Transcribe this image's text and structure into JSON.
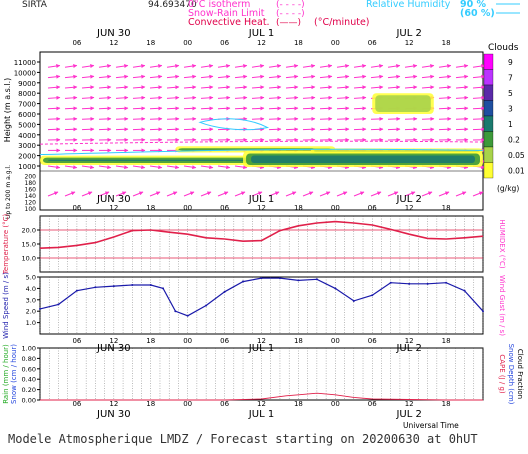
{
  "header": {
    "site": "SIRTA",
    "coords": "94.693470",
    "legend_left": [
      {
        "label": "0°C isotherm",
        "sample": "(- - - -)",
        "color": "#ff33cc"
      },
      {
        "label": "Snow-Rain Limit",
        "sample": "(- - - -)",
        "color": "#ff33cc"
      },
      {
        "label": "Convective Heat.",
        "sample": "(——)",
        "color": "#e0004a",
        "unit": "(°C/minute)"
      }
    ],
    "legend_right": [
      {
        "label": "Relative Humidity",
        "value": "90 %",
        "color": "#33ccff"
      },
      {
        "label": "",
        "value": "(60 %)",
        "color": "#33ccff"
      }
    ]
  },
  "days": [
    "JUN 30",
    "JUL  1",
    "JUL  2"
  ],
  "hour_ticks": [
    "06",
    "12",
    "18",
    "00",
    "06",
    "12",
    "18",
    "00",
    "06",
    "12",
    "18"
  ],
  "xlabel": "Universal Time",
  "footer_text": "Modele Atmospherique LMDZ / Forecast starting on 20200630 at 0hUT",
  "clouds_legend": {
    "title": "Clouds",
    "levels": [
      "9",
      "7",
      "5",
      "3",
      "1",
      "0.2",
      "0.05",
      "0.01"
    ],
    "colors": [
      "#ff00ff",
      "#bb33ff",
      "#5a2aa8",
      "#1f4fa0",
      "#1b7a6e",
      "#3d9a3a",
      "#a8d34a",
      "#ffff33"
    ],
    "unit": "(g/kg)"
  },
  "chart_data": [
    {
      "type": "heatmap",
      "name_axis": "Height (m a.s.l.)",
      "ylabel": "Height (m a.s.l.)",
      "ylabel2": "Up to 200 m a.g.l.",
      "yticks_upper": [
        11000,
        10000,
        9000,
        8000,
        7000,
        6000,
        5000,
        4000,
        3000,
        2000,
        1000
      ],
      "yticks_lower": [
        200,
        180,
        160,
        140,
        120,
        100
      ],
      "cloud_layers": [
        {
          "t_start": 0,
          "t_end": 60,
          "h_low": 1100,
          "h_high": 2000,
          "max_gkg": 1
        },
        {
          "t_start": 22,
          "t_end": 48,
          "h_low": 2300,
          "h_high": 2900,
          "max_gkg": 1
        },
        {
          "t_start": 33,
          "t_end": 72,
          "h_low": 900,
          "h_high": 2400,
          "max_gkg": 1
        },
        {
          "t_start": 54,
          "t_end": 64,
          "h_low": 6000,
          "h_high": 8000,
          "max_gkg": 0.2
        },
        {
          "t_start": 44,
          "t_end": 72,
          "h_low": 2200,
          "h_high": 2700,
          "max_gkg": 0.2
        }
      ]
    },
    {
      "type": "line",
      "ylabel": "Temperature (°C)",
      "ylabel_right": "HUMIDEX (°C)",
      "yticks": [
        "20.0",
        "15.0",
        "10.0"
      ],
      "ylim": [
        5,
        25
      ],
      "x_hours": [
        0,
        3,
        6,
        9,
        12,
        15,
        18,
        21,
        24,
        27,
        30,
        33,
        36,
        39,
        42,
        45,
        48,
        51,
        54,
        57,
        60,
        63,
        66,
        69,
        72
      ],
      "series": [
        {
          "values": [
            13.5,
            13.8,
            14.5,
            15.5,
            17.5,
            19.8,
            20.0,
            19.2,
            18.5,
            17.2,
            16.8,
            16.0,
            16.2,
            19.8,
            21.5,
            22.5,
            23.0,
            22.5,
            21.8,
            20.2,
            18.5,
            17.0,
            16.8,
            17.2,
            17.8
          ]
        }
      ],
      "hlines": [
        20,
        10
      ]
    },
    {
      "type": "line",
      "ylabel": "Wind Speed (m / s)",
      "ylabel_right": "Wind Gust (m / s)",
      "yticks": [
        "5.0",
        "4.0",
        "3.0",
        "2.0",
        "1.0"
      ],
      "ylim": [
        0,
        5
      ],
      "x_hours": [
        0,
        3,
        6,
        9,
        12,
        15,
        18,
        20,
        22,
        24,
        27,
        30,
        33,
        36,
        39,
        42,
        45,
        48,
        51,
        54,
        57,
        60,
        63,
        66,
        69,
        72
      ],
      "series": [
        {
          "values": [
            2.2,
            2.6,
            3.8,
            4.1,
            4.2,
            4.3,
            4.3,
            4.0,
            2.0,
            1.6,
            2.5,
            3.7,
            4.6,
            4.9,
            4.9,
            4.7,
            4.8,
            4.0,
            2.9,
            3.4,
            4.5,
            4.4,
            4.4,
            4.5,
            3.8,
            2.0
          ]
        }
      ]
    },
    {
      "type": "line",
      "ylabel": "Rain (mm / hour)",
      "ylabel2": "Snow (cm / hour)",
      "ylabel_right": "CAPE (J / g)",
      "ylabel_right2": "Snow Depth (cm)",
      "ylabel_right3": "Cloud Fraction",
      "yticks": [
        "1.00",
        "0.80",
        "0.60",
        "0.40",
        "0.20",
        "0.00"
      ],
      "ylim": [
        0,
        1
      ],
      "x_hours": [
        0,
        12,
        24,
        30,
        36,
        40,
        42,
        45,
        48,
        51,
        54,
        60,
        66,
        72
      ],
      "series": [
        {
          "values": [
            0.0,
            0.0,
            0.0,
            0.0,
            0.02,
            0.08,
            0.1,
            0.13,
            0.1,
            0.05,
            0.02,
            0.01,
            0.0,
            0.0
          ]
        }
      ]
    }
  ]
}
